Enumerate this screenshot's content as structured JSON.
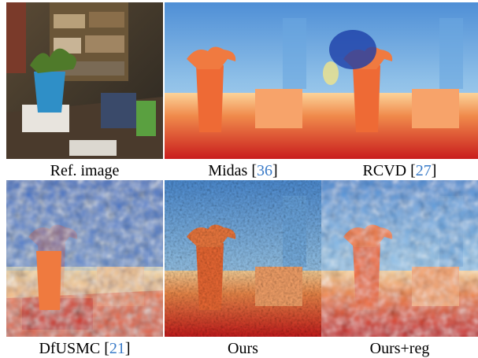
{
  "panels": [
    {
      "text": "Ref. image"
    },
    {
      "text": "Midas [",
      "ref": "36",
      "end": "]"
    },
    {
      "text": "RCVD [",
      "ref": "27",
      "end": "]"
    },
    {
      "text": "DfUSMC [",
      "ref": "21",
      "end": "]"
    },
    {
      "text": "Ours"
    },
    {
      "text": "Ours+reg"
    }
  ]
}
